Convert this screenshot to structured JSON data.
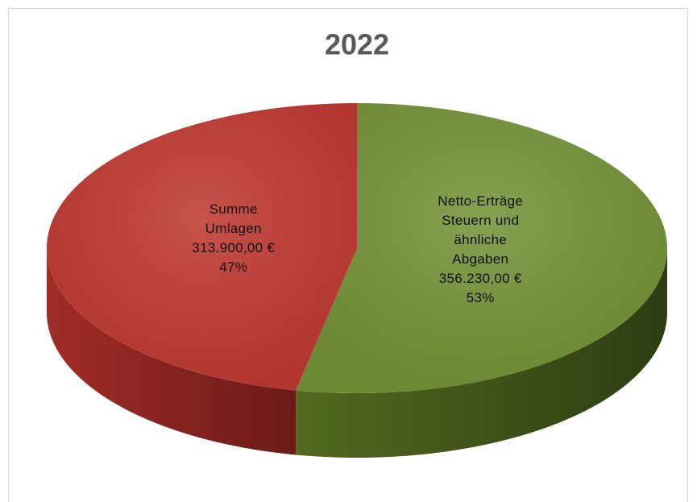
{
  "chart_data": {
    "type": "pie",
    "title": "2022",
    "categories": [
      "Summe Umlagen",
      "Netto-Erträge Steuern und ähnliche Abgaben"
    ],
    "values": [
      313900,
      356230
    ],
    "value_labels": [
      "313.900,00 €",
      "356.230,00 €"
    ],
    "percentages": [
      47,
      53
    ],
    "percentage_labels": [
      "47%",
      "53%"
    ],
    "colors": [
      "#c23b34",
      "#76953a"
    ]
  }
}
